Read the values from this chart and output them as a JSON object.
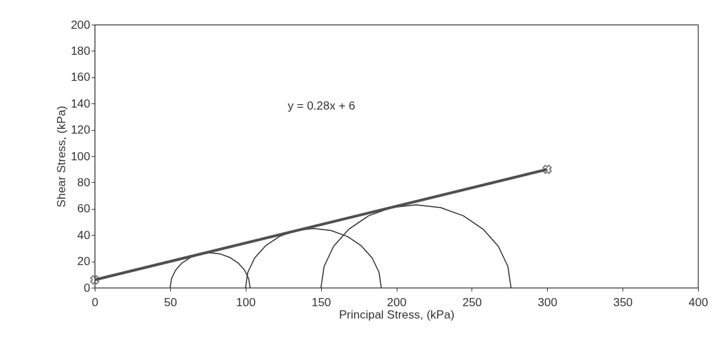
{
  "chart_data": {
    "type": "line",
    "xlabel": "Principal Stress, (kPa)",
    "ylabel": "Shear Stress, (kPa)",
    "annotations": [
      "y = 0.28x + 6"
    ],
    "xlim": [
      0,
      400
    ],
    "xticks": [
      0,
      50,
      100,
      150,
      200,
      250,
      300,
      350,
      400
    ],
    "ylim": [
      0,
      200
    ],
    "yticks": [
      0,
      20,
      40,
      60,
      80,
      100,
      120,
      140,
      160,
      180,
      200
    ],
    "grid": false,
    "legend": false,
    "marker": "none",
    "series": [
      {
        "color": "#303030",
        "x": [
          103,
          102.1,
          99.4,
          95.2,
          89.8,
          83.4,
          76.5,
          69.6,
          63.3,
          57.8,
          53.6,
          50.9,
          50
        ],
        "values": [
          0,
          6.9,
          13.3,
          18.7,
          22.9,
          25.6,
          26.5,
          25.6,
          22.9,
          18.7,
          13.3,
          6.9,
          0
        ]
      },
      {
        "color": "#303030",
        "x": [
          190,
          188.5,
          184,
          176.8,
          167.5,
          156.7,
          145,
          133.3,
          122.5,
          113.2,
          106,
          101.5,
          100
        ],
        "values": [
          0,
          11.7,
          22.5,
          31.8,
          39,
          43.5,
          45,
          43.5,
          39,
          31.8,
          22.5,
          11.7,
          0
        ]
      },
      {
        "color": "#303030",
        "x": [
          276,
          273.9,
          267.6,
          257.5,
          244.5,
          229.3,
          213,
          196.7,
          181.5,
          168.5,
          158.4,
          152.1,
          150
        ],
        "values": [
          0,
          16.3,
          31.5,
          44.5,
          54.6,
          60.9,
          63,
          60.9,
          54.6,
          44.5,
          31.5,
          16.3,
          0
        ]
      },
      {
        "color": "#505050",
        "marker": "cross",
        "x": [
          0,
          300
        ],
        "values": [
          6,
          90
        ]
      }
    ]
  }
}
